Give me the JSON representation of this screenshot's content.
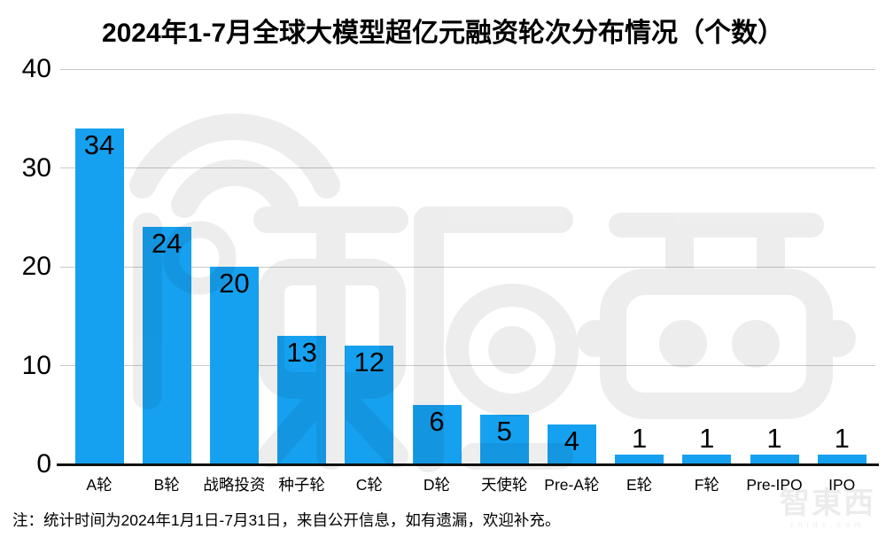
{
  "title": "2024年1-7月全球大模型超亿元融资轮次分布情况（个数）",
  "note": "注：统计时间为2024年1月1日-7月31日，来自公开信息，如有遗漏，欢迎补充。",
  "watermark": {
    "brand": "智東西",
    "domain": "zhidx.com"
  },
  "colors": {
    "bar": "#16A1F0",
    "grid": "#c9c9c9",
    "axis": "#111111",
    "text": "#000000",
    "watermark_tint": "#000000"
  },
  "chart_data": {
    "type": "bar",
    "title": "2024年1-7月全球大模型超亿元融资轮次分布情况（个数）",
    "categories": [
      "A轮",
      "B轮",
      "战略投资",
      "种子轮",
      "C轮",
      "D轮",
      "天使轮",
      "Pre-A轮",
      "E轮",
      "F轮",
      "Pre-IPO",
      "IPO"
    ],
    "values": [
      34,
      24,
      20,
      13,
      12,
      6,
      5,
      4,
      1,
      1,
      1,
      1
    ],
    "xlabel": "",
    "ylabel": "",
    "ylim": [
      0,
      40
    ],
    "yticks": [
      0,
      10,
      20,
      30,
      40
    ],
    "grid": true,
    "legend": false,
    "value_labels": true
  }
}
